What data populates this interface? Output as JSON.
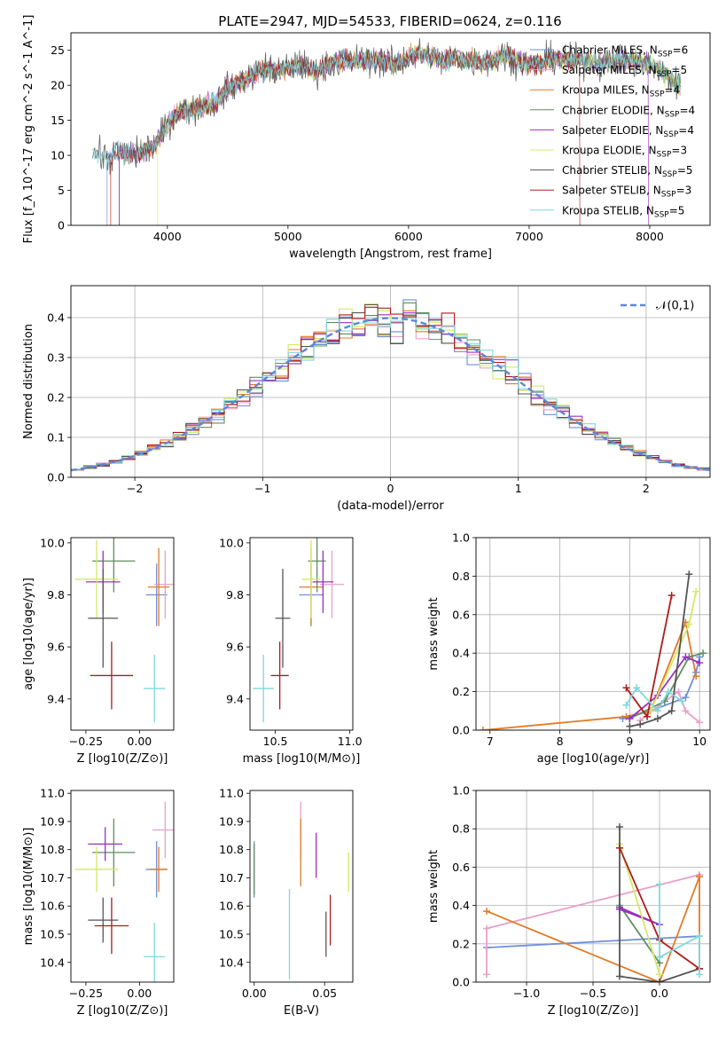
{
  "figure_title": "PLATE=2947, MJD=54533, FIBERID=0624, z=0.116",
  "series_styles": [
    {
      "name": "Chabrier MILES",
      "nssp": "6",
      "color": "#6f8fd6"
    },
    {
      "name": "Salpeter MILES",
      "nssp": "5",
      "color": "#e8a0c8"
    },
    {
      "name": "Kroupa MILES",
      "nssp": "4",
      "color": "#e07b28"
    },
    {
      "name": "Chabrier ELODIE",
      "nssp": "4",
      "color": "#5f8f5f"
    },
    {
      "name": "Salpeter ELODIE",
      "nssp": "4",
      "color": "#9b30c0"
    },
    {
      "name": "Kroupa ELODIE",
      "nssp": "3",
      "color": "#d4e86a"
    },
    {
      "name": "Chabrier STELIB",
      "nssp": "5",
      "color": "#555555"
    },
    {
      "name": "Salpeter STELIB",
      "nssp": "3",
      "color": "#b01c1c"
    },
    {
      "name": "Kroupa STELIB",
      "nssp": "5",
      "color": "#7fd8dc"
    }
  ],
  "chart_data": [
    {
      "id": "spectrum",
      "type": "line",
      "xlabel": "wavelength [Angstrom, rest frame]",
      "ylabel": "Flux [f_λ 10^-17 erg cm^-2 s^-1 A^-1]",
      "xlim": [
        3200,
        8500
      ],
      "ylim": [
        0,
        27.5
      ],
      "xticks": [
        4000,
        5000,
        6000,
        7000,
        8000
      ],
      "yticks": [
        0,
        5,
        10,
        15,
        20,
        25
      ],
      "grid": false,
      "legend_position": "right",
      "spectrum_anchor": {
        "x": [
          3400,
          3500,
          3600,
          3700,
          3800,
          3900,
          4000,
          4100,
          4200,
          4300,
          4400,
          4500,
          4600,
          4700,
          4800,
          4900,
          5000,
          5100,
          5200,
          5300,
          5400,
          5500,
          5600,
          5700,
          5800,
          5900,
          6000,
          6100,
          6200,
          6300,
          6400,
          6500,
          6600,
          6700,
          6800,
          6900,
          7000,
          7100,
          7200,
          7300,
          7400,
          7500,
          7600,
          7700,
          7800,
          7900,
          8000,
          8100,
          8200,
          8260
        ],
        "y": [
          10.5,
          9.5,
          10.5,
          10.0,
          10.5,
          11.5,
          14.5,
          16.5,
          16.5,
          17.0,
          17.5,
          19.5,
          20.5,
          21.5,
          22.5,
          22.0,
          22.5,
          23.0,
          22.0,
          22.5,
          23.5,
          23.5,
          23.5,
          23.5,
          23.5,
          23.0,
          24.0,
          24.5,
          24.0,
          23.5,
          24.0,
          23.5,
          23.5,
          23.5,
          24.5,
          23.5,
          23.0,
          23.0,
          24.0,
          23.5,
          23.5,
          23.5,
          23.0,
          23.5,
          23.5,
          23.5,
          23.0,
          22.0,
          20.5,
          20.0
        ]
      },
      "series_ranges": [
        [
          3500,
          8260
        ],
        [
          3600,
          8260
        ],
        [
          3600,
          8260
        ],
        [
          3600,
          8260
        ],
        [
          3600,
          7990
        ],
        [
          3920,
          8260
        ],
        [
          3380,
          8260
        ],
        [
          3530,
          7420
        ],
        [
          3380,
          8260
        ]
      ]
    },
    {
      "id": "residuals",
      "type": "area",
      "xlabel": "(data-model)/error",
      "ylabel": "Normed distribution",
      "xlim": [
        -2.5,
        2.5
      ],
      "ylim": [
        0,
        0.48
      ],
      "xticks": [
        -2,
        -1,
        0,
        1,
        2
      ],
      "yticks": [
        0.0,
        0.1,
        0.2,
        0.3,
        0.4
      ],
      "grid": true,
      "legend_position": "top-right",
      "reference": {
        "label": "𝒩(0,1)",
        "mean": 0,
        "sigma": 1,
        "color": "#5e86d8"
      },
      "bin_width": 0.1
    },
    {
      "id": "z_age",
      "type": "scatter",
      "xlabel": "Z [log10(Z/Z⊙)]",
      "ylabel": "age  [log10(age/yr)]",
      "xlim": [
        -0.32,
        0.16
      ],
      "ylim": [
        9.28,
        10.02
      ],
      "xticks": [
        -0.25,
        0.0
      ],
      "yticks": [
        9.4,
        9.6,
        9.8,
        10.0
      ],
      "grid": false,
      "points": [
        {
          "s": 0,
          "x": 0.08,
          "y": 9.8,
          "xerr": 0.05,
          "yerr": 0.12
        },
        {
          "s": 1,
          "x": 0.12,
          "y": 9.84,
          "xerr": 0.05,
          "yerr": 0.13
        },
        {
          "s": 2,
          "x": 0.09,
          "y": 9.83,
          "xerr": 0.05,
          "yerr": 0.15
        },
        {
          "s": 3,
          "x": -0.12,
          "y": 9.93,
          "xerr": 0.1,
          "yerr": 0.12
        },
        {
          "s": 4,
          "x": -0.17,
          "y": 9.85,
          "xerr": 0.08,
          "yerr": 0.12
        },
        {
          "s": 5,
          "x": -0.2,
          "y": 9.86,
          "xerr": 0.1,
          "yerr": 0.15
        },
        {
          "s": 6,
          "x": -0.17,
          "y": 9.71,
          "xerr": 0.07,
          "yerr": 0.19
        },
        {
          "s": 7,
          "x": -0.13,
          "y": 9.49,
          "xerr": 0.1,
          "yerr": 0.13
        },
        {
          "s": 8,
          "x": 0.07,
          "y": 9.44,
          "xerr": 0.05,
          "yerr": 0.13
        }
      ]
    },
    {
      "id": "mass_age",
      "type": "scatter",
      "xlabel": "mass [log10(M/M⊙)]",
      "ylabel": "",
      "xlim": [
        10.33,
        11.02
      ],
      "ylim": [
        9.28,
        10.02
      ],
      "xticks": [
        10.5,
        11.0
      ],
      "yticks": [
        9.4,
        9.6,
        9.8,
        10.0
      ],
      "grid": false,
      "points": [
        {
          "s": 0,
          "x": 10.74,
          "y": 9.8,
          "xerr": 0.08,
          "yerr": 0.12
        },
        {
          "s": 1,
          "x": 10.88,
          "y": 9.84,
          "xerr": 0.08,
          "yerr": 0.13
        },
        {
          "s": 2,
          "x": 10.74,
          "y": 9.83,
          "xerr": 0.08,
          "yerr": 0.15
        },
        {
          "s": 3,
          "x": 10.78,
          "y": 9.93,
          "xerr": 0.06,
          "yerr": 0.12
        },
        {
          "s": 4,
          "x": 10.82,
          "y": 9.85,
          "xerr": 0.07,
          "yerr": 0.12
        },
        {
          "s": 5,
          "x": 10.74,
          "y": 9.86,
          "xerr": 0.06,
          "yerr": 0.15
        },
        {
          "s": 6,
          "x": 10.55,
          "y": 9.71,
          "xerr": 0.05,
          "yerr": 0.19
        },
        {
          "s": 7,
          "x": 10.53,
          "y": 9.49,
          "xerr": 0.06,
          "yerr": 0.13
        },
        {
          "s": 8,
          "x": 10.42,
          "y": 9.44,
          "xerr": 0.07,
          "yerr": 0.13
        }
      ]
    },
    {
      "id": "age_weight",
      "type": "line",
      "xlabel": "age  [log10(age/yr)]",
      "ylabel": "mass weight",
      "xlim": [
        6.8,
        10.15
      ],
      "ylim": [
        0,
        1.0
      ],
      "xticks": [
        7,
        8,
        9,
        10
      ],
      "yticks": [
        0.0,
        0.2,
        0.4,
        0.6,
        0.8,
        1.0
      ],
      "grid": true,
      "series": [
        {
          "s": 0,
          "x": [
            8.9,
            9.3,
            9.8,
            9.95,
            10.0
          ],
          "y": [
            0.06,
            0.1,
            0.17,
            0.3,
            0.38
          ]
        },
        {
          "s": 1,
          "x": [
            9.15,
            9.5,
            9.7,
            9.8,
            10.0
          ],
          "y": [
            0.05,
            0.15,
            0.2,
            0.1,
            0.04
          ]
        },
        {
          "s": 2,
          "x": [
            6.9,
            8.95,
            9.3,
            9.8,
            9.95
          ],
          "y": [
            0.0,
            0.07,
            0.1,
            0.56,
            0.28
          ]
        },
        {
          "s": 3,
          "x": [
            9.0,
            9.5,
            9.85,
            10.05
          ],
          "y": [
            0.06,
            0.15,
            0.38,
            0.4
          ]
        },
        {
          "s": 4,
          "x": [
            9.0,
            9.4,
            9.8,
            10.0
          ],
          "y": [
            0.06,
            0.18,
            0.38,
            0.35
          ]
        },
        {
          "s": 5,
          "x": [
            9.3,
            9.85,
            9.95
          ],
          "y": [
            0.1,
            0.55,
            0.72
          ]
        },
        {
          "s": 6,
          "x": [
            9.0,
            9.15,
            9.4,
            9.6,
            9.85
          ],
          "y": [
            0.02,
            0.03,
            0.06,
            0.1,
            0.81
          ]
        },
        {
          "s": 7,
          "x": [
            8.95,
            9.25,
            9.6
          ],
          "y": [
            0.22,
            0.07,
            0.7
          ]
        },
        {
          "s": 8,
          "x": [
            8.95,
            9.1,
            9.4,
            9.55,
            9.75
          ],
          "y": [
            0.13,
            0.22,
            0.1,
            0.2,
            0.15
          ]
        }
      ]
    },
    {
      "id": "z_mass",
      "type": "scatter",
      "xlabel": "Z [log10(Z/Z⊙)]",
      "ylabel": "mass [log10(M/M⊙)]",
      "xlim": [
        -0.32,
        0.16
      ],
      "ylim": [
        10.33,
        11.01
      ],
      "xticks": [
        -0.25,
        0.0
      ],
      "yticks": [
        10.4,
        10.5,
        10.6,
        10.7,
        10.8,
        10.9,
        11.0
      ],
      "grid": false,
      "points": [
        {
          "s": 0,
          "x": 0.08,
          "y": 10.73,
          "xerr": 0.05,
          "yerr": 0.1
        },
        {
          "s": 1,
          "x": 0.12,
          "y": 10.87,
          "xerr": 0.06,
          "yerr": 0.1
        },
        {
          "s": 2,
          "x": 0.09,
          "y": 10.73,
          "xerr": 0.04,
          "yerr": 0.08
        },
        {
          "s": 3,
          "x": -0.12,
          "y": 10.79,
          "xerr": 0.1,
          "yerr": 0.12
        },
        {
          "s": 4,
          "x": -0.16,
          "y": 10.82,
          "xerr": 0.08,
          "yerr": 0.06
        },
        {
          "s": 5,
          "x": -0.2,
          "y": 10.73,
          "xerr": 0.1,
          "yerr": 0.08
        },
        {
          "s": 6,
          "x": -0.17,
          "y": 10.55,
          "xerr": 0.07,
          "yerr": 0.08
        },
        {
          "s": 7,
          "x": -0.13,
          "y": 10.53,
          "xerr": 0.08,
          "yerr": 0.1
        },
        {
          "s": 8,
          "x": 0.07,
          "y": 10.42,
          "xerr": 0.05,
          "yerr": 0.12
        }
      ]
    },
    {
      "id": "ebv_mass",
      "type": "scatter",
      "xlabel": "E(B-V)",
      "ylabel": "",
      "xlim": [
        -0.003,
        0.07
      ],
      "ylim": [
        10.33,
        11.01
      ],
      "xticks": [
        0.0,
        0.05
      ],
      "yticks": [
        10.4,
        10.5,
        10.6,
        10.7,
        10.8,
        10.9,
        11.0
      ],
      "grid": false,
      "points": [
        {
          "s": 0,
          "x": 0.0,
          "y": 10.73,
          "yerr": 0.1
        },
        {
          "s": 1,
          "x": 0.033,
          "y": 10.87,
          "yerr": 0.1
        },
        {
          "s": 2,
          "x": 0.033,
          "y": 10.79,
          "yerr": 0.12
        },
        {
          "s": 3,
          "x": 0.0,
          "y": 10.73,
          "yerr": 0.09
        },
        {
          "s": 4,
          "x": 0.044,
          "y": 10.78,
          "yerr": 0.08
        },
        {
          "s": 5,
          "x": 0.067,
          "y": 10.72,
          "yerr": 0.07
        },
        {
          "s": 6,
          "x": 0.051,
          "y": 10.5,
          "yerr": 0.08
        },
        {
          "s": 7,
          "x": 0.054,
          "y": 10.55,
          "yerr": 0.09
        },
        {
          "s": 8,
          "x": 0.025,
          "y": 10.5,
          "yerr": 0.16
        }
      ]
    },
    {
      "id": "z_weight",
      "type": "line",
      "xlabel": "Z [log10(Z/Z⊙)]",
      "ylabel": "mass weight",
      "xlim": [
        -1.38,
        0.38
      ],
      "ylim": [
        0,
        1.0
      ],
      "xticks": [
        -1.0,
        -0.5,
        0.0
      ],
      "yticks": [
        0.0,
        0.2,
        0.4,
        0.6,
        0.8,
        1.0
      ],
      "grid": true,
      "series": [
        {
          "s": 0,
          "x": [
            -1.3,
            0.3
          ],
          "y": [
            0.18,
            0.24
          ]
        },
        {
          "s": 1,
          "x": [
            -1.3,
            -1.3,
            0.3
          ],
          "y": [
            0.04,
            0.28,
            0.56
          ]
        },
        {
          "s": 2,
          "x": [
            -1.3,
            0.0,
            0.3,
            0.3
          ],
          "y": [
            0.37,
            0.0,
            0.55,
            0.07
          ]
        },
        {
          "s": 3,
          "x": [
            -0.3,
            0.0
          ],
          "y": [
            0.4,
            0.1
          ]
        },
        {
          "s": 4,
          "x": [
            -0.3,
            0.0,
            -0.3
          ],
          "y": [
            0.39,
            0.3,
            0.38
          ]
        },
        {
          "s": 5,
          "x": [
            -0.3,
            0.0
          ],
          "y": [
            0.72,
            0.04
          ]
        },
        {
          "s": 6,
          "x": [
            -0.3,
            -0.3,
            0.0,
            0.3
          ],
          "y": [
            0.81,
            0.03,
            0.0,
            0.07
          ]
        },
        {
          "s": 7,
          "x": [
            -0.3,
            0.0,
            0.3
          ],
          "y": [
            0.7,
            0.22,
            0.07
          ]
        },
        {
          "s": 8,
          "x": [
            0.0,
            0.0,
            0.3,
            0.3
          ],
          "y": [
            0.51,
            0.13,
            0.24,
            0.04
          ]
        }
      ]
    }
  ]
}
